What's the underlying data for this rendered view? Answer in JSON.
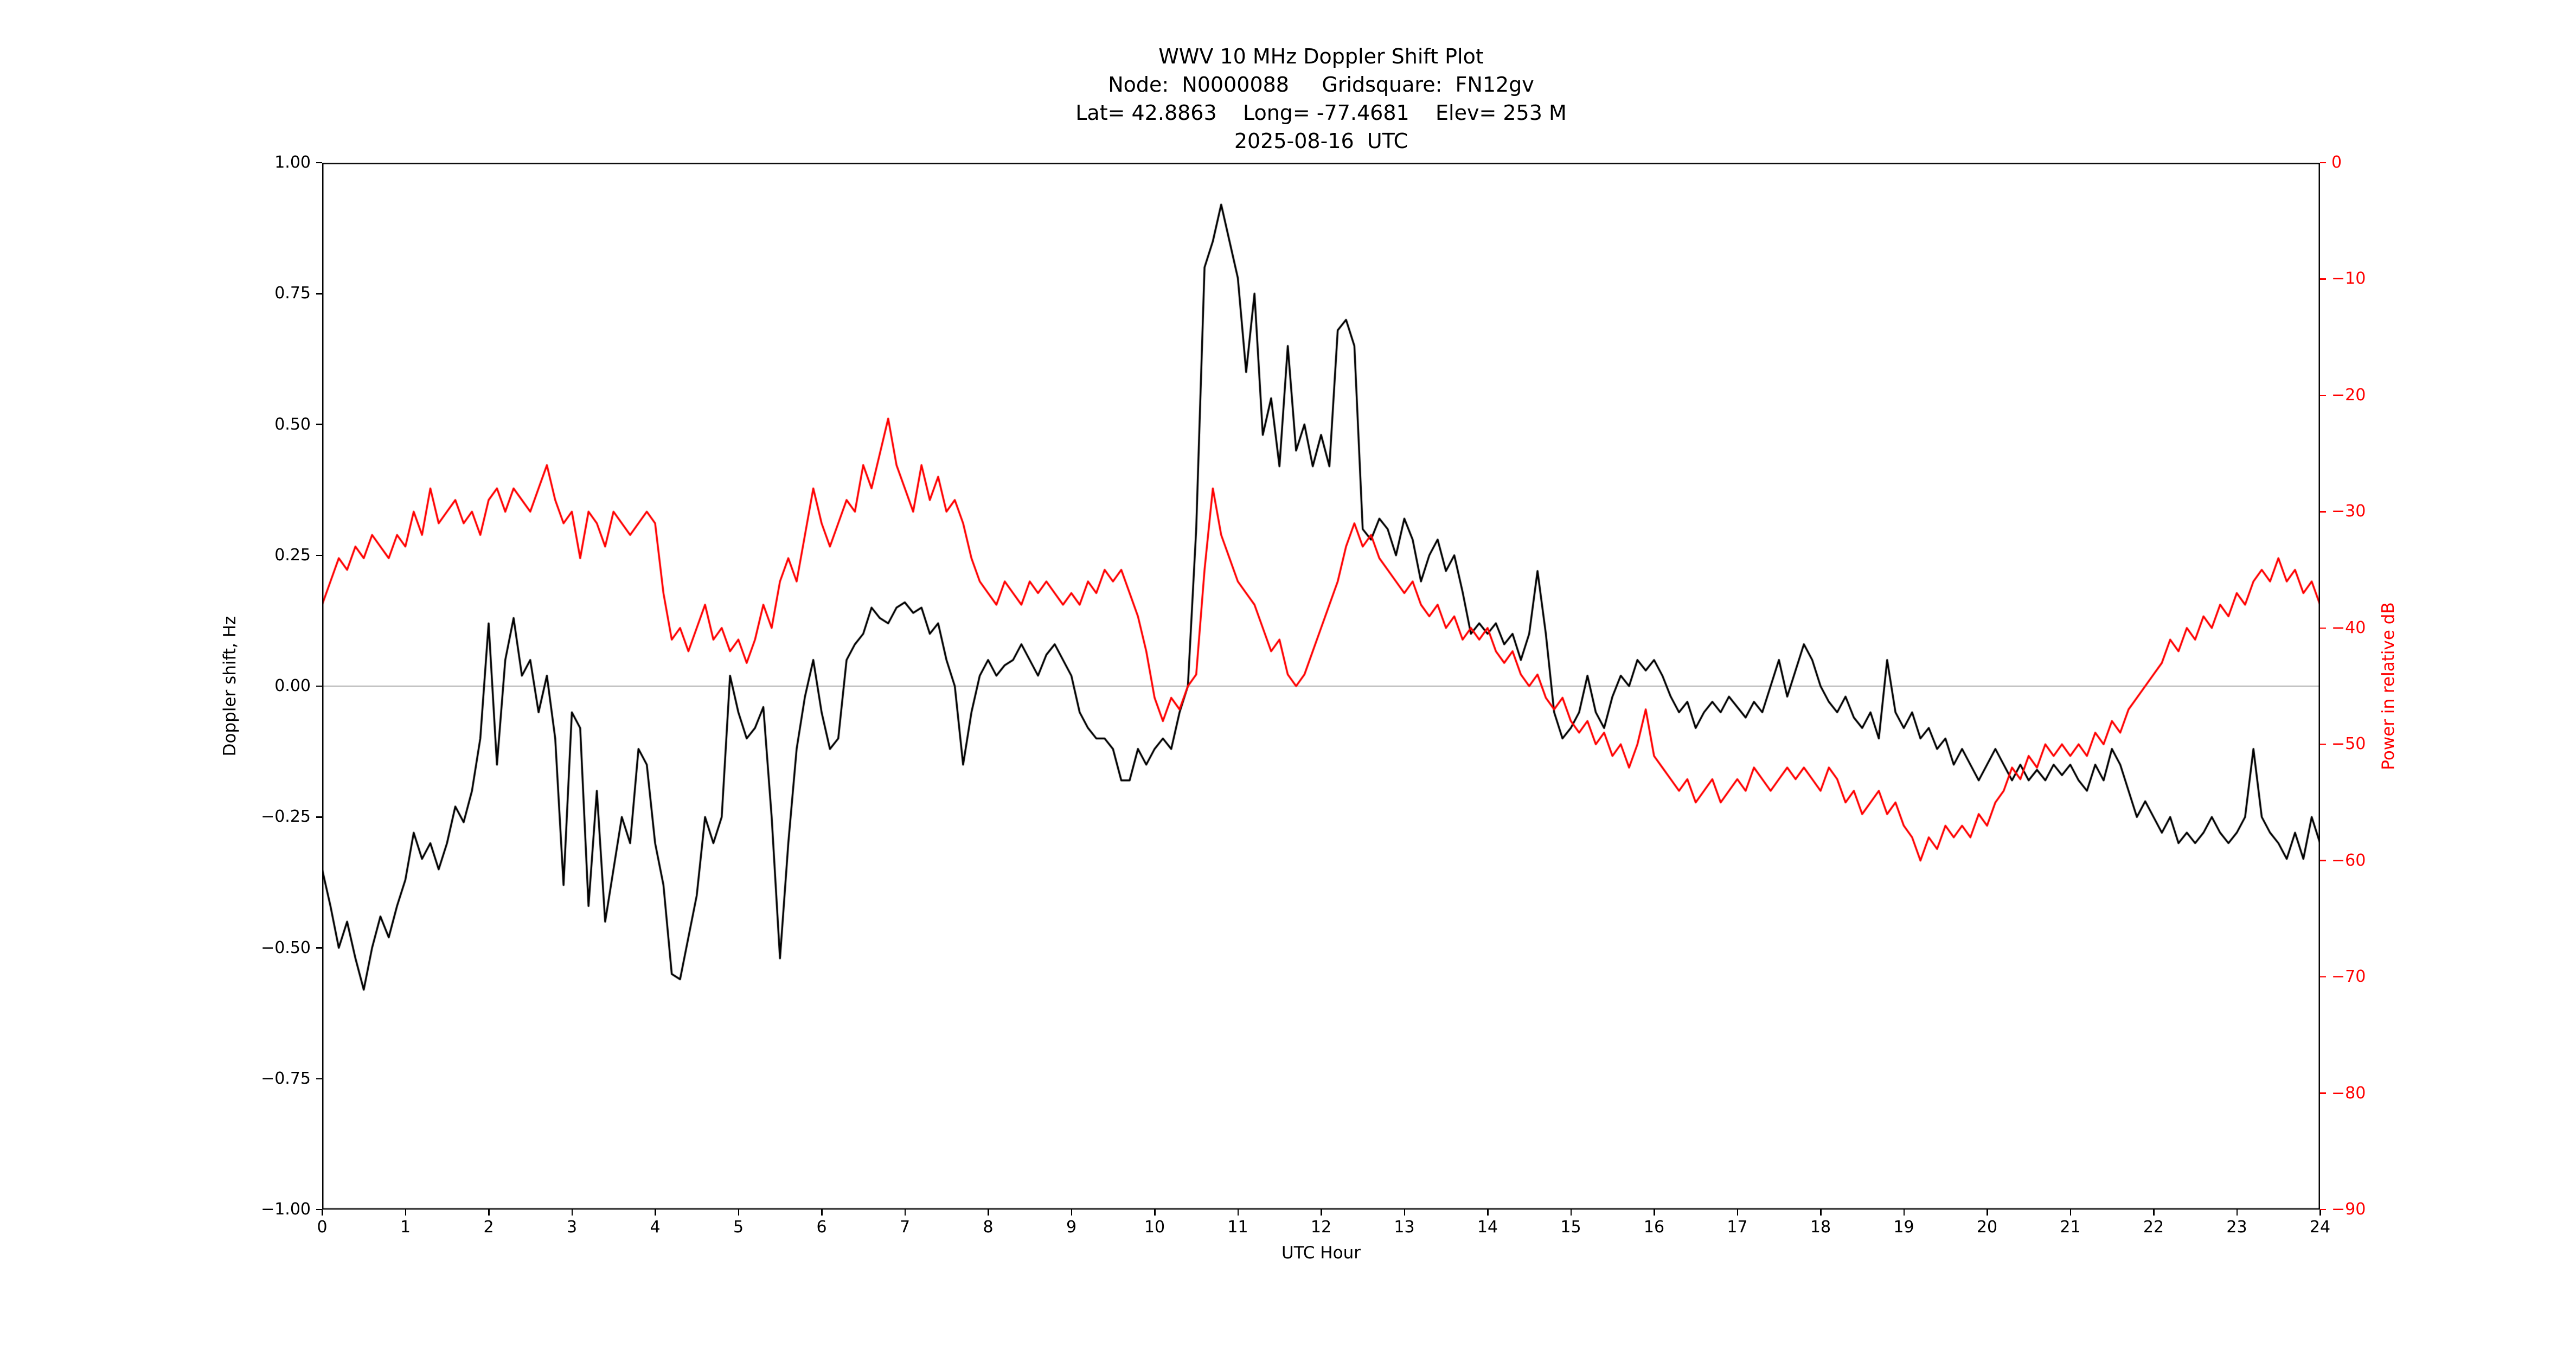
{
  "header": {
    "line1": "WWV 10 MHz Doppler Shift Plot",
    "line2": "Node:  N0000088     Gridsquare:  FN12gv",
    "line3": "Lat= 42.8863    Long= -77.4681    Elev= 253 M",
    "line4": "2025-08-16  UTC"
  },
  "colors": {
    "doppler_line": "#000000",
    "power_line": "#ff0000",
    "zero_line": "#b0b0b0",
    "spine": "#000000",
    "background": "#ffffff"
  },
  "chart_data": {
    "type": "line",
    "title": "WWV 10 MHz Doppler Shift Plot",
    "xlabel": "UTC Hour",
    "ylabel_left": "Doppler shift, Hz",
    "ylabel_right": "Power in relative dB",
    "xlim": [
      0,
      24
    ],
    "ylim_left": [
      -1.0,
      1.0
    ],
    "ylim_right": [
      -90,
      0
    ],
    "grid": false,
    "legend": "none",
    "zero_reference_line_left_axis": 0.0,
    "x_ticks": {
      "values": [
        0,
        1,
        2,
        3,
        4,
        5,
        6,
        7,
        8,
        9,
        10,
        11,
        12,
        13,
        14,
        15,
        16,
        17,
        18,
        19,
        20,
        21,
        22,
        23,
        24
      ],
      "labels": [
        "0",
        "1",
        "2",
        "3",
        "4",
        "5",
        "6",
        "7",
        "8",
        "9",
        "10",
        "11",
        "12",
        "13",
        "14",
        "15",
        "16",
        "17",
        "18",
        "19",
        "20",
        "21",
        "22",
        "23",
        "24"
      ]
    },
    "y_ticks_left": {
      "values": [
        1.0,
        0.75,
        0.5,
        0.25,
        0.0,
        -0.25,
        -0.5,
        -0.75,
        -1.0
      ],
      "labels": [
        "1.00",
        "0.75",
        "0.50",
        "0.25",
        "0.00",
        "−0.25",
        "−0.50",
        "−0.75",
        "−1.00"
      ]
    },
    "y_ticks_right": {
      "values": [
        0,
        -10,
        -20,
        -30,
        -40,
        -50,
        -60,
        -70,
        -80,
        -90
      ],
      "labels": [
        "0",
        "−10",
        "−20",
        "−30",
        "−40",
        "−50",
        "−60",
        "−70",
        "−80",
        "−90"
      ]
    },
    "x_start": 0.0,
    "x_step": 0.1,
    "series": [
      {
        "name": "Doppler shift, Hz",
        "axis": "left",
        "color": "#000000",
        "values": [
          -0.35,
          -0.42,
          -0.5,
          -0.45,
          -0.52,
          -0.58,
          -0.5,
          -0.44,
          -0.48,
          -0.42,
          -0.37,
          -0.28,
          -0.33,
          -0.3,
          -0.35,
          -0.3,
          -0.23,
          -0.26,
          -0.2,
          -0.1,
          0.12,
          -0.15,
          0.05,
          0.13,
          0.02,
          0.05,
          -0.05,
          0.02,
          -0.1,
          -0.38,
          -0.05,
          -0.08,
          -0.42,
          -0.2,
          -0.45,
          -0.35,
          -0.25,
          -0.3,
          -0.12,
          -0.15,
          -0.3,
          -0.38,
          -0.55,
          -0.56,
          -0.48,
          -0.4,
          -0.25,
          -0.3,
          -0.25,
          0.02,
          -0.05,
          -0.1,
          -0.08,
          -0.04,
          -0.25,
          -0.52,
          -0.3,
          -0.12,
          -0.02,
          0.05,
          -0.05,
          -0.12,
          -0.1,
          0.05,
          0.08,
          0.1,
          0.15,
          0.13,
          0.12,
          0.15,
          0.16,
          0.14,
          0.15,
          0.1,
          0.12,
          0.05,
          0.0,
          -0.15,
          -0.05,
          0.02,
          0.05,
          0.02,
          0.04,
          0.05,
          0.08,
          0.05,
          0.02,
          0.06,
          0.08,
          0.05,
          0.02,
          -0.05,
          -0.08,
          -0.1,
          -0.1,
          -0.12,
          -0.18,
          -0.18,
          -0.12,
          -0.15,
          -0.12,
          -0.1,
          -0.12,
          -0.05,
          0.0,
          0.3,
          0.8,
          0.85,
          0.92,
          0.85,
          0.78,
          0.6,
          0.75,
          0.48,
          0.55,
          0.42,
          0.65,
          0.45,
          0.5,
          0.42,
          0.48,
          0.42,
          0.68,
          0.7,
          0.65,
          0.3,
          0.28,
          0.32,
          0.3,
          0.25,
          0.32,
          0.28,
          0.2,
          0.25,
          0.28,
          0.22,
          0.25,
          0.18,
          0.1,
          0.12,
          0.1,
          0.12,
          0.08,
          0.1,
          0.05,
          0.1,
          0.22,
          0.1,
          -0.05,
          -0.1,
          -0.08,
          -0.05,
          0.02,
          -0.05,
          -0.08,
          -0.02,
          0.02,
          0.0,
          0.05,
          0.03,
          0.05,
          0.02,
          -0.02,
          -0.05,
          -0.03,
          -0.08,
          -0.05,
          -0.03,
          -0.05,
          -0.02,
          -0.04,
          -0.06,
          -0.03,
          -0.05,
          0.0,
          0.05,
          -0.02,
          0.03,
          0.08,
          0.05,
          0.0,
          -0.03,
          -0.05,
          -0.02,
          -0.06,
          -0.08,
          -0.05,
          -0.1,
          0.05,
          -0.05,
          -0.08,
          -0.05,
          -0.1,
          -0.08,
          -0.12,
          -0.1,
          -0.15,
          -0.12,
          -0.15,
          -0.18,
          -0.15,
          -0.12,
          -0.15,
          -0.18,
          -0.15,
          -0.18,
          -0.16,
          -0.18,
          -0.15,
          -0.17,
          -0.15,
          -0.18,
          -0.2,
          -0.15,
          -0.18,
          -0.12,
          -0.15,
          -0.2,
          -0.25,
          -0.22,
          -0.25,
          -0.28,
          -0.25,
          -0.3,
          -0.28,
          -0.3,
          -0.28,
          -0.25,
          -0.28,
          -0.3,
          -0.28,
          -0.25,
          -0.12,
          -0.25,
          -0.28,
          -0.3,
          -0.33,
          -0.28,
          -0.33,
          -0.25,
          -0.3
        ]
      },
      {
        "name": "Power in relative dB",
        "axis": "right",
        "color": "#ff0000",
        "values": [
          -38,
          -36,
          -34,
          -35,
          -33,
          -34,
          -32,
          -33,
          -34,
          -32,
          -33,
          -30,
          -32,
          -28,
          -31,
          -30,
          -29,
          -31,
          -30,
          -32,
          -29,
          -28,
          -30,
          -28,
          -29,
          -30,
          -28,
          -26,
          -29,
          -31,
          -30,
          -34,
          -30,
          -31,
          -33,
          -30,
          -31,
          -32,
          -31,
          -30,
          -31,
          -37,
          -41,
          -40,
          -42,
          -40,
          -38,
          -41,
          -40,
          -42,
          -41,
          -43,
          -41,
          -38,
          -40,
          -36,
          -34,
          -36,
          -32,
          -28,
          -31,
          -33,
          -31,
          -29,
          -30,
          -26,
          -28,
          -25,
          -22,
          -26,
          -28,
          -30,
          -26,
          -29,
          -27,
          -30,
          -29,
          -31,
          -34,
          -36,
          -37,
          -38,
          -36,
          -37,
          -38,
          -36,
          -37,
          -36,
          -37,
          -38,
          -37,
          -38,
          -36,
          -37,
          -35,
          -36,
          -35,
          -37,
          -39,
          -42,
          -46,
          -48,
          -46,
          -47,
          -45,
          -44,
          -35,
          -28,
          -32,
          -34,
          -36,
          -37,
          -38,
          -40,
          -42,
          -41,
          -44,
          -45,
          -44,
          -42,
          -40,
          -38,
          -36,
          -33,
          -31,
          -33,
          -32,
          -34,
          -35,
          -36,
          -37,
          -36,
          -38,
          -39,
          -38,
          -40,
          -39,
          -41,
          -40,
          -41,
          -40,
          -42,
          -43,
          -42,
          -44,
          -45,
          -44,
          -46,
          -47,
          -46,
          -48,
          -49,
          -48,
          -50,
          -49,
          -51,
          -50,
          -52,
          -50,
          -47,
          -51,
          -52,
          -53,
          -54,
          -53,
          -55,
          -54,
          -53,
          -55,
          -54,
          -53,
          -54,
          -52,
          -53,
          -54,
          -53,
          -52,
          -53,
          -52,
          -53,
          -54,
          -52,
          -53,
          -55,
          -54,
          -56,
          -55,
          -54,
          -56,
          -55,
          -57,
          -58,
          -60,
          -58,
          -59,
          -57,
          -58,
          -57,
          -58,
          -56,
          -57,
          -55,
          -54,
          -52,
          -53,
          -51,
          -52,
          -50,
          -51,
          -50,
          -51,
          -50,
          -51,
          -49,
          -50,
          -48,
          -49,
          -47,
          -46,
          -45,
          -44,
          -43,
          -41,
          -42,
          -40,
          -41,
          -39,
          -40,
          -38,
          -39,
          -37,
          -38,
          -36,
          -35,
          -36,
          -34,
          -36,
          -35,
          -37,
          -36,
          -38
        ]
      }
    ]
  },
  "layout_note": "dual-axis time series; black = Doppler shift (left axis), red = relative power (right axis)"
}
